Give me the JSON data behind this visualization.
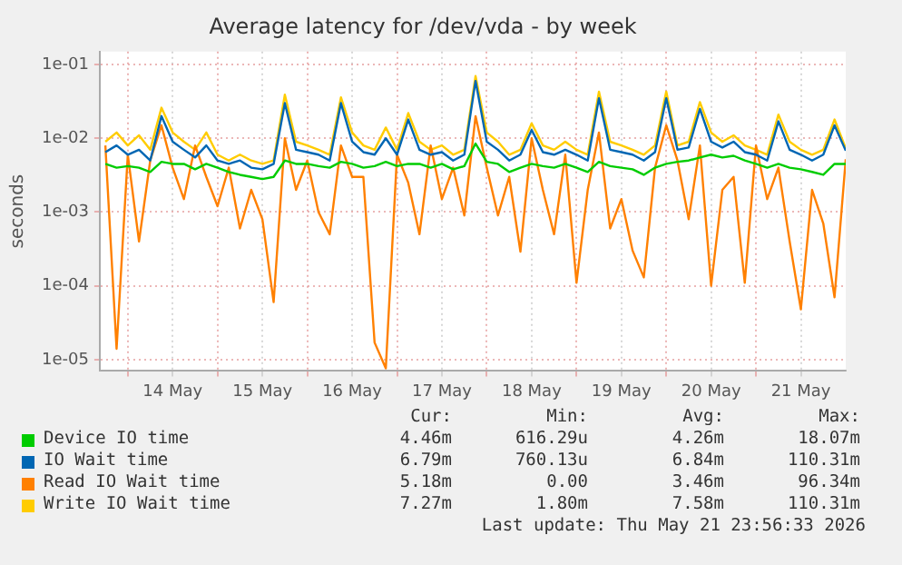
{
  "chart_data": {
    "type": "line",
    "title": "Average latency for /dev/vda - by week",
    "ylabel": "seconds",
    "log": true,
    "grid": true,
    "legend": "bottom",
    "marker": "none",
    "line_style": "solid",
    "xlim": [
      "2026-05-13T16:30",
      "2026-05-22T00:00"
    ],
    "xticks": [
      {
        "value": "2026-05-14T00:00",
        "label": null
      },
      {
        "value": "2026-05-14T12:00",
        "label": "14 May"
      },
      {
        "value": "2026-05-15T00:00",
        "label": null
      },
      {
        "value": "2026-05-15T12:00",
        "label": "15 May"
      },
      {
        "value": "2026-05-16T00:00",
        "label": null
      },
      {
        "value": "2026-05-16T12:00",
        "label": "16 May"
      },
      {
        "value": "2026-05-17T00:00",
        "label": null
      },
      {
        "value": "2026-05-17T12:00",
        "label": "17 May"
      },
      {
        "value": "2026-05-18T00:00",
        "label": null
      },
      {
        "value": "2026-05-18T12:00",
        "label": "18 May"
      },
      {
        "value": "2026-05-19T00:00",
        "label": null
      },
      {
        "value": "2026-05-19T12:00",
        "label": "19 May"
      },
      {
        "value": "2026-05-20T00:00",
        "label": null
      },
      {
        "value": "2026-05-20T12:00",
        "label": "20 May"
      },
      {
        "value": "2026-05-21T00:00",
        "label": null
      },
      {
        "value": "2026-05-21T12:00",
        "label": "21 May"
      }
    ],
    "ylim": [
      7e-06,
      0.15
    ],
    "yticks": [
      {
        "value": 1e-05,
        "label": "1e-05"
      },
      {
        "value": 0.0001,
        "label": "1e-04"
      },
      {
        "value": 0.001,
        "label": "1e-03"
      },
      {
        "value": 0.01,
        "label": "1e-02"
      },
      {
        "value": 0.1,
        "label": "1e-01"
      }
    ],
    "x": [
      "2026-05-13T18:00",
      "2026-05-13T21:00",
      "2026-05-14T00:00",
      "2026-05-14T03:00",
      "2026-05-14T06:00",
      "2026-05-14T09:00",
      "2026-05-14T12:00",
      "2026-05-14T15:00",
      "2026-05-14T18:00",
      "2026-05-14T21:00",
      "2026-05-15T00:00",
      "2026-05-15T03:00",
      "2026-05-15T06:00",
      "2026-05-15T09:00",
      "2026-05-15T12:00",
      "2026-05-15T15:00",
      "2026-05-15T18:00",
      "2026-05-15T21:00",
      "2026-05-16T00:00",
      "2026-05-16T03:00",
      "2026-05-16T06:00",
      "2026-05-16T09:00",
      "2026-05-16T12:00",
      "2026-05-16T15:00",
      "2026-05-16T18:00",
      "2026-05-16T21:00",
      "2026-05-17T00:00",
      "2026-05-17T03:00",
      "2026-05-17T06:00",
      "2026-05-17T09:00",
      "2026-05-17T12:00",
      "2026-05-17T15:00",
      "2026-05-17T18:00",
      "2026-05-17T21:00",
      "2026-05-18T00:00",
      "2026-05-18T03:00",
      "2026-05-18T06:00",
      "2026-05-18T09:00",
      "2026-05-18T12:00",
      "2026-05-18T15:00",
      "2026-05-18T18:00",
      "2026-05-18T21:00",
      "2026-05-19T00:00",
      "2026-05-19T03:00",
      "2026-05-19T06:00",
      "2026-05-19T09:00",
      "2026-05-19T12:00",
      "2026-05-19T15:00",
      "2026-05-19T18:00",
      "2026-05-19T21:00",
      "2026-05-20T00:00",
      "2026-05-20T03:00",
      "2026-05-20T06:00",
      "2026-05-20T09:00",
      "2026-05-20T12:00",
      "2026-05-20T15:00",
      "2026-05-20T18:00",
      "2026-05-20T21:00",
      "2026-05-21T00:00",
      "2026-05-21T03:00",
      "2026-05-21T06:00",
      "2026-05-21T09:00",
      "2026-05-21T12:00",
      "2026-05-21T15:00",
      "2026-05-21T18:00",
      "2026-05-21T21:00",
      "2026-05-22T00:00"
    ],
    "series": [
      {
        "name": "Device IO time",
        "color": "#00cc00",
        "values": [
          0.0045,
          0.004,
          0.0042,
          0.004,
          0.0035,
          0.0048,
          0.0045,
          0.0045,
          0.0038,
          0.0045,
          0.004,
          0.0035,
          0.0032,
          0.003,
          0.0028,
          0.003,
          0.005,
          0.0045,
          0.0045,
          0.0042,
          0.004,
          0.0048,
          0.0045,
          0.004,
          0.0042,
          0.0048,
          0.0042,
          0.0045,
          0.0045,
          0.004,
          0.0045,
          0.0038,
          0.0042,
          0.0085,
          0.0048,
          0.0045,
          0.0035,
          0.004,
          0.0045,
          0.0042,
          0.004,
          0.0045,
          0.004,
          0.0035,
          0.0048,
          0.0042,
          0.004,
          0.0038,
          0.0032,
          0.004,
          0.0045,
          0.0048,
          0.005,
          0.0055,
          0.006,
          0.0055,
          0.0058,
          0.005,
          0.0045,
          0.004,
          0.0045,
          0.004,
          0.0038,
          0.0035,
          0.0032,
          0.0045,
          0.0045
        ]
      },
      {
        "name": "IO Wait time",
        "color": "#0066b3",
        "values": [
          0.0065,
          0.008,
          0.006,
          0.007,
          0.005,
          0.02,
          0.009,
          0.007,
          0.0055,
          0.008,
          0.005,
          0.0045,
          0.005,
          0.004,
          0.0038,
          0.0045,
          0.03,
          0.007,
          0.0065,
          0.006,
          0.005,
          0.03,
          0.009,
          0.0065,
          0.006,
          0.01,
          0.006,
          0.018,
          0.007,
          0.006,
          0.0065,
          0.005,
          0.006,
          0.06,
          0.009,
          0.007,
          0.005,
          0.006,
          0.013,
          0.0065,
          0.006,
          0.007,
          0.006,
          0.005,
          0.035,
          0.007,
          0.0065,
          0.006,
          0.005,
          0.0065,
          0.035,
          0.007,
          0.0075,
          0.025,
          0.009,
          0.0075,
          0.009,
          0.0065,
          0.006,
          0.005,
          0.017,
          0.007,
          0.006,
          0.005,
          0.006,
          0.015,
          0.0068
        ]
      },
      {
        "name": "Read IO Wait time",
        "color": "#ff8000",
        "values": [
          0.008,
          1.4e-05,
          0.006,
          0.0004,
          0.005,
          0.015,
          0.004,
          0.0015,
          0.008,
          0.003,
          0.0012,
          0.004,
          0.0006,
          0.002,
          0.0008,
          6e-05,
          0.01,
          0.002,
          0.005,
          0.001,
          0.0005,
          0.008,
          0.003,
          0.003,
          1.7e-05,
          7.6e-06,
          0.006,
          0.0025,
          0.0005,
          0.008,
          0.0015,
          0.004,
          0.0009,
          0.02,
          0.004,
          0.0009,
          0.003,
          0.00029,
          0.01,
          0.002,
          0.0005,
          0.006,
          0.00011,
          0.002,
          0.012,
          0.0006,
          0.0015,
          0.0003,
          0.00013,
          0.004,
          0.015,
          0.005,
          0.0008,
          0.008,
          0.0001,
          0.002,
          0.003,
          0.00011,
          0.008,
          0.0015,
          0.004,
          0.0004,
          4.8e-05,
          0.002,
          0.0007,
          7e-05,
          0.0052
        ]
      },
      {
        "name": "Write IO Wait time",
        "color": "#ffcc00",
        "values": [
          0.009,
          0.012,
          0.008,
          0.011,
          0.007,
          0.026,
          0.012,
          0.009,
          0.007,
          0.012,
          0.006,
          0.005,
          0.006,
          0.005,
          0.0045,
          0.005,
          0.039,
          0.009,
          0.008,
          0.007,
          0.006,
          0.036,
          0.012,
          0.008,
          0.007,
          0.014,
          0.007,
          0.022,
          0.009,
          0.007,
          0.008,
          0.006,
          0.007,
          0.07,
          0.012,
          0.009,
          0.006,
          0.007,
          0.016,
          0.008,
          0.007,
          0.009,
          0.007,
          0.006,
          0.043,
          0.009,
          0.008,
          0.007,
          0.006,
          0.008,
          0.043,
          0.008,
          0.009,
          0.031,
          0.012,
          0.009,
          0.011,
          0.008,
          0.007,
          0.006,
          0.021,
          0.009,
          0.007,
          0.006,
          0.007,
          0.018,
          0.0073
        ]
      }
    ],
    "annotations": [
      "Cur:",
      "Min:",
      "Avg:",
      "Max:",
      "4.46m",
      "616.29u",
      "4.26m",
      "18.07m",
      "6.79m",
      "760.13u",
      "6.84m",
      "110.31m",
      "5.18m",
      "0.00",
      "3.46m",
      "96.34m",
      "7.27m",
      "1.80m",
      "7.58m",
      "110.31m",
      "Last update: Thu May 21 23:56:33 2026"
    ]
  }
}
